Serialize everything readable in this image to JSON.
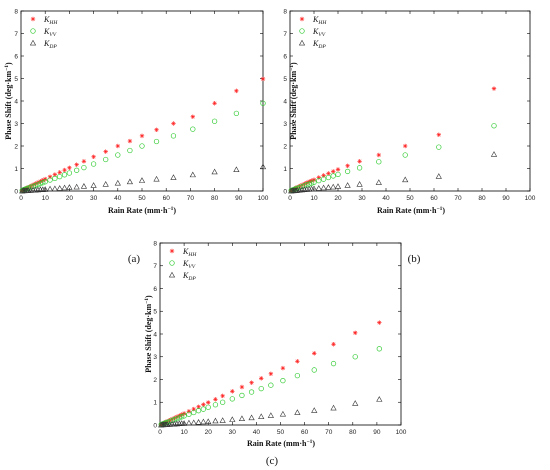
{
  "colors": {
    "kHH": "#ff2020",
    "kVV": "#33cc33",
    "kDP": "#333333"
  },
  "chart_data": [
    {
      "type": "scatter",
      "panel_label": "(a)",
      "xlabel": "Rain Rate (mm·h",
      "xlabel_sup": "−1",
      "xlabel_end": ")",
      "ylabel": "Phase Shift (deg·km",
      "ylabel_sup": "−1",
      "ylabel_end": ")",
      "xlim": [
        0,
        100
      ],
      "ylim": [
        0,
        8
      ],
      "xticks": [
        "0",
        "10",
        "20",
        "30",
        "40",
        "50",
        "60",
        "70",
        "80",
        "90",
        "100"
      ],
      "yticks": [
        "0",
        "1",
        "2",
        "3",
        "4",
        "5",
        "6",
        "7",
        "8"
      ],
      "legend_position": "top-left",
      "series": [
        {
          "name": "K",
          "sub": "HH",
          "marker": "star",
          "color_key": "kHH",
          "x": [
            0.5,
            1,
            1.5,
            2,
            2.5,
            3,
            4,
            5,
            6,
            7,
            8,
            9,
            10,
            12,
            14,
            16,
            18,
            20,
            23,
            26,
            30,
            35,
            40,
            45,
            50,
            56,
            63,
            71,
            80,
            89,
            100
          ],
          "y": [
            0.03,
            0.06,
            0.09,
            0.11,
            0.14,
            0.17,
            0.22,
            0.28,
            0.33,
            0.38,
            0.43,
            0.48,
            0.53,
            0.63,
            0.73,
            0.83,
            0.93,
            1.03,
            1.17,
            1.32,
            1.52,
            1.75,
            2.0,
            2.22,
            2.45,
            2.72,
            3.0,
            3.3,
            3.9,
            4.45,
            4.98
          ]
        },
        {
          "name": "K",
          "sub": "VV",
          "marker": "circle",
          "color_key": "kVV",
          "x": [
            0.5,
            1,
            1.5,
            2,
            2.5,
            3,
            4,
            5,
            6,
            7,
            8,
            9,
            10,
            12,
            14,
            16,
            18,
            20,
            23,
            26,
            30,
            35,
            40,
            45,
            50,
            56,
            63,
            71,
            80,
            89,
            100
          ],
          "y": [
            0.02,
            0.05,
            0.07,
            0.09,
            0.11,
            0.13,
            0.17,
            0.21,
            0.25,
            0.29,
            0.33,
            0.37,
            0.41,
            0.49,
            0.56,
            0.64,
            0.72,
            0.8,
            0.92,
            1.04,
            1.2,
            1.4,
            1.6,
            1.8,
            2.0,
            2.2,
            2.45,
            2.75,
            3.1,
            3.45,
            3.9
          ]
        },
        {
          "name": "K",
          "sub": "DP",
          "marker": "triangle",
          "color_key": "kDP",
          "x": [
            0.5,
            1,
            1.5,
            2,
            2.5,
            3,
            4,
            5,
            6,
            7,
            8,
            9,
            10,
            12,
            14,
            16,
            18,
            20,
            23,
            26,
            30,
            35,
            40,
            45,
            50,
            56,
            63,
            71,
            80,
            89,
            100
          ],
          "y": [
            0.0,
            0.01,
            0.01,
            0.02,
            0.02,
            0.02,
            0.03,
            0.04,
            0.04,
            0.05,
            0.06,
            0.06,
            0.07,
            0.09,
            0.1,
            0.12,
            0.14,
            0.16,
            0.18,
            0.21,
            0.25,
            0.3,
            0.35,
            0.41,
            0.47,
            0.53,
            0.6,
            0.72,
            0.85,
            0.95,
            1.08
          ]
        }
      ]
    },
    {
      "type": "scatter",
      "panel_label": "(b)",
      "xlabel": "Rain Rate (mm·h",
      "xlabel_sup": "−1",
      "xlabel_end": ")",
      "ylabel": "Phase Shift (deg·km",
      "ylabel_sup": "−1",
      "ylabel_end": ")",
      "xlim": [
        0,
        100
      ],
      "ylim": [
        0,
        8
      ],
      "xticks": [
        "0",
        "10",
        "20",
        "30",
        "40",
        "50",
        "60",
        "70",
        "80",
        "90",
        "100"
      ],
      "yticks": [
        "0",
        "1",
        "2",
        "3",
        "4",
        "5",
        "6",
        "7",
        "8"
      ],
      "legend_position": "top-left",
      "series": [
        {
          "name": "K",
          "sub": "HH",
          "marker": "star",
          "color_key": "kHH",
          "x": [
            0.5,
            1,
            1.5,
            2,
            2.5,
            3,
            4,
            5,
            6,
            7,
            8,
            9,
            10,
            12,
            14,
            16,
            18,
            20,
            24,
            29,
            37,
            48,
            62,
            85
          ],
          "y": [
            0.03,
            0.06,
            0.08,
            0.11,
            0.14,
            0.17,
            0.22,
            0.27,
            0.32,
            0.37,
            0.42,
            0.46,
            0.5,
            0.6,
            0.69,
            0.78,
            0.87,
            0.96,
            1.12,
            1.32,
            1.6,
            2.0,
            2.5,
            4.55
          ]
        },
        {
          "name": "K",
          "sub": "VV",
          "marker": "circle",
          "color_key": "kVV",
          "x": [
            0.5,
            1,
            1.5,
            2,
            2.5,
            3,
            4,
            5,
            6,
            7,
            8,
            9,
            10,
            12,
            14,
            16,
            18,
            20,
            24,
            29,
            37,
            48,
            62,
            85
          ],
          "y": [
            0.02,
            0.04,
            0.06,
            0.08,
            0.1,
            0.12,
            0.16,
            0.2,
            0.24,
            0.28,
            0.31,
            0.35,
            0.39,
            0.46,
            0.53,
            0.6,
            0.67,
            0.74,
            0.87,
            1.03,
            1.3,
            1.6,
            1.95,
            2.9
          ]
        },
        {
          "name": "K",
          "sub": "DP",
          "marker": "triangle",
          "color_key": "kDP",
          "x": [
            0.5,
            1,
            1.5,
            2,
            2.5,
            3,
            4,
            5,
            6,
            7,
            8,
            9,
            10,
            12,
            14,
            16,
            18,
            20,
            24,
            29,
            37,
            48,
            62,
            85
          ],
          "y": [
            0.0,
            0.01,
            0.01,
            0.02,
            0.02,
            0.03,
            0.04,
            0.05,
            0.06,
            0.07,
            0.08,
            0.09,
            0.1,
            0.12,
            0.14,
            0.16,
            0.18,
            0.2,
            0.25,
            0.3,
            0.38,
            0.5,
            0.65,
            1.63
          ]
        }
      ]
    },
    {
      "type": "scatter",
      "panel_label": "(c)",
      "xlabel": "Rain Rate (mm·h",
      "xlabel_sup": "−1",
      "xlabel_end": ")",
      "ylabel": "Phase Shift (deg·km",
      "ylabel_sup": "−1",
      "ylabel_end": ")",
      "xlim": [
        0,
        100
      ],
      "ylim": [
        0,
        8
      ],
      "xticks": [
        "0",
        "10",
        "20",
        "30",
        "40",
        "50",
        "60",
        "70",
        "80",
        "90",
        "100"
      ],
      "yticks": [
        "0",
        "1",
        "2",
        "3",
        "4",
        "5",
        "6",
        "7",
        "8"
      ],
      "legend_position": "top-left",
      "series": [
        {
          "name": "K",
          "sub": "HH",
          "marker": "star",
          "color_key": "kHH",
          "x": [
            0.5,
            1,
            1.5,
            2,
            2.5,
            3,
            4,
            5,
            6,
            7,
            8,
            9,
            10,
            12,
            14,
            16,
            18,
            20,
            23,
            26,
            30,
            34,
            38,
            42,
            46,
            51,
            57,
            64,
            72,
            81,
            91
          ],
          "y": [
            0.03,
            0.06,
            0.08,
            0.11,
            0.14,
            0.16,
            0.21,
            0.26,
            0.31,
            0.36,
            0.41,
            0.46,
            0.51,
            0.6,
            0.7,
            0.8,
            0.9,
            0.99,
            1.13,
            1.28,
            1.48,
            1.67,
            1.86,
            2.05,
            2.25,
            2.5,
            2.8,
            3.15,
            3.55,
            4.05,
            4.5
          ]
        },
        {
          "name": "K",
          "sub": "VV",
          "marker": "circle",
          "color_key": "kVV",
          "x": [
            0.5,
            1,
            1.5,
            2,
            2.5,
            3,
            4,
            5,
            6,
            7,
            8,
            9,
            10,
            12,
            14,
            16,
            18,
            20,
            23,
            26,
            30,
            34,
            38,
            42,
            46,
            51,
            57,
            64,
            72,
            81,
            91
          ],
          "y": [
            0.02,
            0.04,
            0.06,
            0.08,
            0.1,
            0.12,
            0.16,
            0.2,
            0.24,
            0.28,
            0.32,
            0.36,
            0.4,
            0.47,
            0.55,
            0.63,
            0.7,
            0.78,
            0.89,
            1.0,
            1.15,
            1.3,
            1.45,
            1.6,
            1.75,
            1.95,
            2.17,
            2.42,
            2.7,
            3.0,
            3.35
          ]
        },
        {
          "name": "K",
          "sub": "DP",
          "marker": "triangle",
          "color_key": "kDP",
          "x": [
            0.5,
            1,
            1.5,
            2,
            2.5,
            3,
            4,
            5,
            6,
            7,
            8,
            9,
            10,
            12,
            14,
            16,
            18,
            20,
            23,
            26,
            30,
            34,
            38,
            42,
            46,
            51,
            57,
            64,
            72,
            81,
            91
          ],
          "y": [
            0.0,
            0.01,
            0.01,
            0.02,
            0.02,
            0.02,
            0.03,
            0.04,
            0.04,
            0.05,
            0.06,
            0.07,
            0.07,
            0.09,
            0.1,
            0.12,
            0.14,
            0.15,
            0.18,
            0.2,
            0.24,
            0.28,
            0.32,
            0.37,
            0.42,
            0.48,
            0.55,
            0.64,
            0.75,
            0.95,
            1.13
          ]
        }
      ]
    }
  ]
}
